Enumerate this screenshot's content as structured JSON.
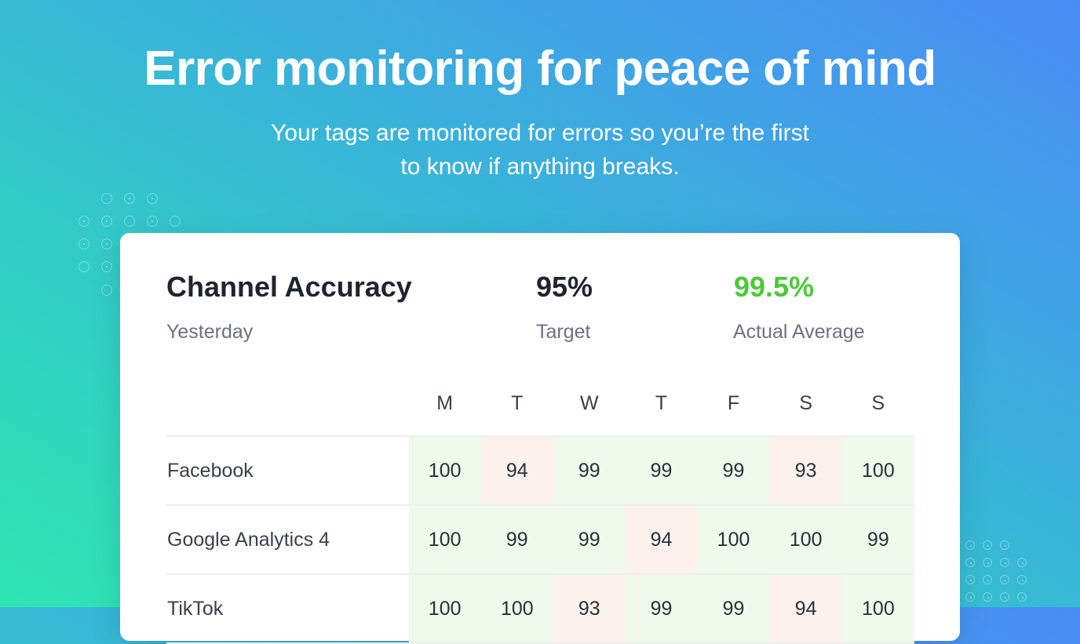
{
  "hero": {
    "title": "Error monitoring for peace of mind",
    "subtitle_line1": "Your tags are monitored for errors so you’re the first",
    "subtitle_line2": "to know if anything breaks."
  },
  "card": {
    "title": "Channel Accuracy",
    "period": "Yesterday",
    "target_value": "95%",
    "target_label": "Target",
    "actual_value": "99.5%",
    "actual_label": "Actual Average",
    "actual_color": "#4cc93a"
  },
  "table": {
    "days": [
      "M",
      "T",
      "W",
      "T",
      "F",
      "S",
      "S"
    ],
    "target": 95,
    "rows": [
      {
        "name": "Facebook",
        "values": [
          100,
          94,
          99,
          99,
          99,
          93,
          100
        ]
      },
      {
        "name": "Google Analytics 4",
        "values": [
          100,
          99,
          99,
          94,
          100,
          100,
          99
        ]
      },
      {
        "name": "TikTok",
        "values": [
          100,
          100,
          93,
          99,
          99,
          94,
          100
        ]
      }
    ]
  },
  "colors": {
    "ok_cell": "#effaea",
    "bad_cell": "#fdf1ee"
  }
}
